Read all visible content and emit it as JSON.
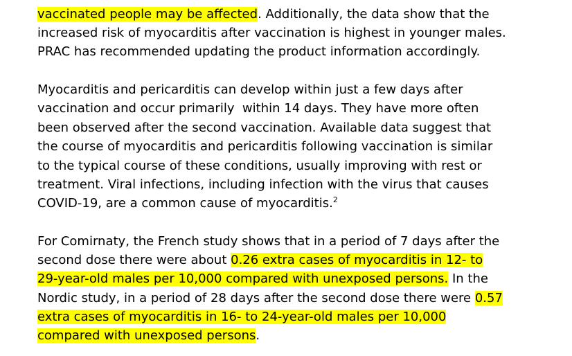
{
  "document": {
    "highlight_color": "#ffff00",
    "paragraph_1": {
      "line_1_highlight": "vaccinated people may be affected",
      "line_1_rest": ". Additionally, the data show that the",
      "line_2": "increased risk of myocarditis after vaccination is highest in younger males.",
      "line_3": "PRAC has recommended updating the product information accordingly."
    },
    "paragraph_2": {
      "line_1": "Myocarditis and pericarditis can develop within just a few days after",
      "line_2": "vaccination and occur primarily  within 14 days. They have more often",
      "line_3": "been observed after the second vaccination. Available data suggest that",
      "line_4": "the course of myocarditis and pericarditis following vaccination is similar",
      "line_5": "to the typical course of these conditions, usually improving with rest or",
      "line_6": "treatment. Viral infections, including infection with the virus that causes",
      "line_7": "COVID-19, are a common cause of myocarditis.",
      "footnote_ref": "2"
    },
    "paragraph_3": {
      "line_1": "For Comirnaty, the French study shows that in a period of 7 days after the",
      "line_2_plain": "second dose there were about ",
      "line_2_highlight": "0.26 extra cases of myocarditis in 12- to",
      "line_3_highlight": "29-year-old males per 10,000 compared with unexposed persons.",
      "line_3_plain": " In the",
      "line_4_plain": "Nordic study, in a period of 28 days after the second dose there were ",
      "line_4_highlight": "0.57",
      "line_5_highlight": "extra cases of myocarditis in 16- to 24-year-old males per 10,000",
      "line_6_highlight": "compared with unexposed persons",
      "line_6_plain": "."
    }
  }
}
